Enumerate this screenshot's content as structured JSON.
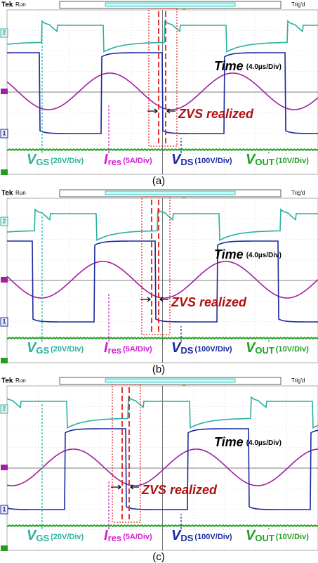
{
  "panels": [
    {
      "caption": "(a)",
      "header": {
        "brand": "Tek",
        "status": "Run",
        "trigger": "Trig'd"
      },
      "channels": [
        "2",
        "1"
      ],
      "time": {
        "label": "Time",
        "scale": "(4.0µs/Div)"
      },
      "annotation": "ZVS realized",
      "signals": [
        {
          "symbol": "V",
          "subscript": "GS",
          "scale": "(20V/Div)"
        },
        {
          "symbol": "I",
          "subscript": "res",
          "scale": "(5A/Div)"
        },
        {
          "symbol": "V",
          "subscript": "DS",
          "scale": "(100V/Div)"
        },
        {
          "symbol": "V",
          "subscript": "OUT",
          "scale": "(10V/Div)"
        }
      ]
    },
    {
      "caption": "(b)",
      "header": {
        "brand": "Tek",
        "status": "Run",
        "trigger": "Trig'd"
      },
      "channels": [
        "2",
        "1"
      ],
      "time": {
        "label": "Time",
        "scale": "(4.0µs/Div)"
      },
      "annotation": "ZVS realized",
      "signals": [
        {
          "symbol": "V",
          "subscript": "GS",
          "scale": "(20V/Div)"
        },
        {
          "symbol": "I",
          "subscript": "res",
          "scale": "(5A/Div)"
        },
        {
          "symbol": "V",
          "subscript": "DS",
          "scale": "(100V/Div)"
        },
        {
          "symbol": "V",
          "subscript": "OUT",
          "scale": "(10V/Div)"
        }
      ]
    },
    {
      "caption": "(c)",
      "header": {
        "brand": "Tek",
        "status": "Run",
        "trigger": "Trig'd"
      },
      "channels": [
        "2",
        "1"
      ],
      "time": {
        "label": "Time",
        "scale": "(4.0µs/Div)"
      },
      "annotation": "ZVS realized",
      "signals": [
        {
          "symbol": "V",
          "subscript": "GS",
          "scale": "(20V/Div)"
        },
        {
          "symbol": "I",
          "subscript": "res",
          "scale": "(5A/Div)"
        },
        {
          "symbol": "V",
          "subscript": "DS",
          "scale": "(100V/Div)"
        },
        {
          "symbol": "V",
          "subscript": "OUT",
          "scale": "(10V/Div)"
        }
      ]
    }
  ]
}
